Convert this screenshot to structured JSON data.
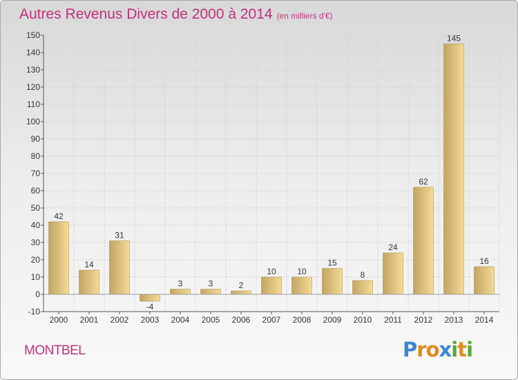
{
  "title": "Autres Revenus Divers de 2000 à 2014",
  "unit_note": "(en milliers d'€)",
  "commune": "MONTBEL",
  "logo": {
    "text": "Proxiti",
    "letters": [
      "P",
      "r",
      "o",
      "x",
      "i",
      "t",
      "i"
    ],
    "letter_colors": [
      "#3a86d1",
      "#e08a1e",
      "#e08a1e",
      "#3a86d1",
      "#5aa832",
      "#e08a1e",
      "#5aa832"
    ]
  },
  "colors": {
    "title": "#c0307a",
    "bar_light": "#f5dc96",
    "bar_dark": "#c2a463",
    "grid": "#cfcfcf",
    "axis": "#555555"
  },
  "chart_data": {
    "type": "bar",
    "title": "Autres Revenus Divers de 2000 à 2014",
    "subtitle": "(en milliers d'€)",
    "categories": [
      "2000",
      "2001",
      "2002",
      "2003",
      "2004",
      "2005",
      "2006",
      "2007",
      "2008",
      "2009",
      "2010",
      "2011",
      "2012",
      "2013",
      "2014"
    ],
    "values": [
      42,
      14,
      31,
      -4,
      3,
      3,
      2,
      10,
      10,
      15,
      8,
      24,
      62,
      145,
      16
    ],
    "data_labels": [
      "42",
      "14",
      "31",
      "-4",
      "3",
      "3",
      "2",
      "10",
      "10",
      "15",
      "8",
      "24",
      "62",
      "145",
      "16"
    ],
    "ylim": [
      -10,
      150
    ],
    "yticks": [
      -10,
      0,
      10,
      20,
      30,
      40,
      50,
      60,
      70,
      80,
      90,
      100,
      110,
      120,
      130,
      140,
      150
    ],
    "grid": true,
    "xlabel": "",
    "ylabel": ""
  }
}
